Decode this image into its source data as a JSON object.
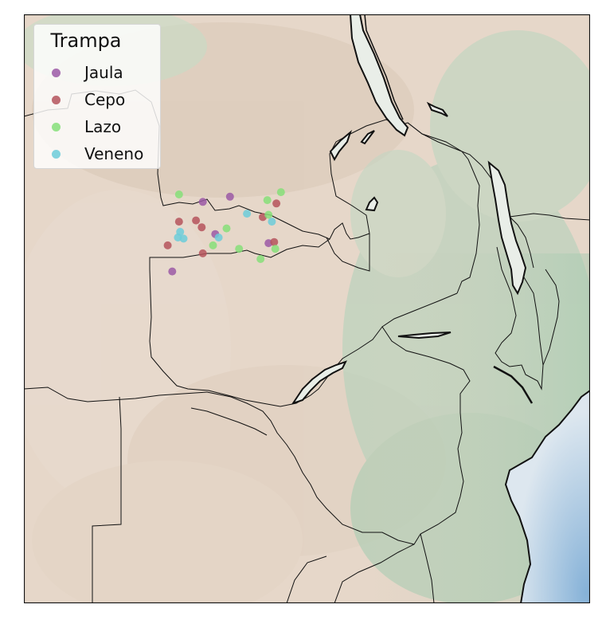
{
  "legend": {
    "title": "Trampa",
    "items": [
      {
        "label": "Jaula",
        "color": "#9b59a6"
      },
      {
        "label": "Cepo",
        "color": "#b5545c"
      },
      {
        "label": "Lazo",
        "color": "#86df79"
      },
      {
        "label": "Veneno",
        "color": "#6cccd9"
      }
    ]
  },
  "colors": {
    "land": "#e5d8cb",
    "highland_green": "#a9cbb3",
    "ocean": "#9cc2df",
    "border": "#111111"
  },
  "points": [
    {
      "trap": "Jaula",
      "lon": 23.9,
      "lat": -12.28
    },
    {
      "trap": "Jaula",
      "lon": 25.1,
      "lat": -12.05
    },
    {
      "trap": "Jaula",
      "lon": 24.45,
      "lat": -13.7
    },
    {
      "trap": "Jaula",
      "lon": 22.55,
      "lat": -15.35
    },
    {
      "trap": "Jaula",
      "lon": 26.8,
      "lat": -14.1
    },
    {
      "trap": "Cepo",
      "lon": 22.85,
      "lat": -13.15
    },
    {
      "trap": "Cepo",
      "lon": 23.6,
      "lat": -13.1
    },
    {
      "trap": "Cepo",
      "lon": 23.85,
      "lat": -13.4
    },
    {
      "trap": "Cepo",
      "lon": 26.55,
      "lat": -12.95
    },
    {
      "trap": "Cepo",
      "lon": 27.15,
      "lat": -12.35
    },
    {
      "trap": "Cepo",
      "lon": 27.05,
      "lat": -14.05
    },
    {
      "trap": "Cepo",
      "lon": 22.35,
      "lat": -14.2
    },
    {
      "trap": "Cepo",
      "lon": 23.9,
      "lat": -14.55
    },
    {
      "trap": "Lazo",
      "lon": 22.85,
      "lat": -11.95
    },
    {
      "trap": "Lazo",
      "lon": 26.75,
      "lat": -12.2
    },
    {
      "trap": "Lazo",
      "lon": 27.35,
      "lat": -11.85
    },
    {
      "trap": "Lazo",
      "lon": 26.8,
      "lat": -12.85
    },
    {
      "trap": "Lazo",
      "lon": 24.95,
      "lat": -13.45
    },
    {
      "trap": "Lazo",
      "lon": 24.35,
      "lat": -14.2
    },
    {
      "trap": "Lazo",
      "lon": 25.5,
      "lat": -14.35
    },
    {
      "trap": "Lazo",
      "lon": 27.1,
      "lat": -14.35
    },
    {
      "trap": "Lazo",
      "lon": 26.45,
      "lat": -14.8
    },
    {
      "trap": "Veneno",
      "lon": 25.85,
      "lat": -12.8
    },
    {
      "trap": "Veneno",
      "lon": 26.95,
      "lat": -13.15
    },
    {
      "trap": "Veneno",
      "lon": 22.9,
      "lat": -13.6
    },
    {
      "trap": "Veneno",
      "lon": 22.8,
      "lat": -13.85
    },
    {
      "trap": "Veneno",
      "lon": 23.05,
      "lat": -13.9
    },
    {
      "trap": "Veneno",
      "lon": 24.6,
      "lat": -13.85
    }
  ]
}
